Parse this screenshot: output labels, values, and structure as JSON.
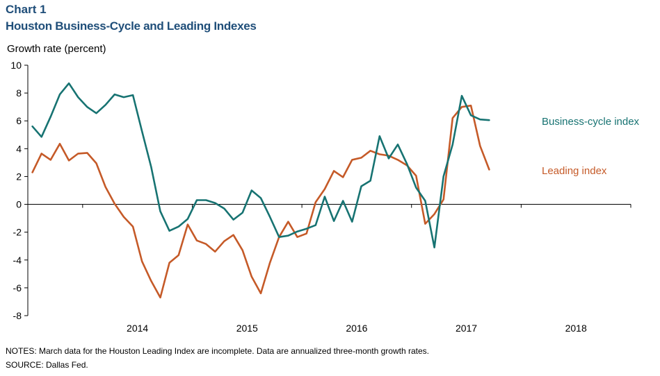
{
  "header": {
    "chart_number": "Chart 1",
    "title": "Houston Business-Cycle and Leading Indexes"
  },
  "footer": {
    "notes": "NOTES: March data for the Houston Leading Index are incomplete. Data are annualized three-month growth rates.",
    "source": "SOURCE: Dallas Fed."
  },
  "colors": {
    "business_cycle": "#177372",
    "leading": "#c55a28"
  },
  "chart_data": {
    "type": "line",
    "title": "Houston Business-Cycle and Leading Indexes",
    "ylabel": "Growth rate (percent)",
    "xlabel": "",
    "ylim": [
      -8,
      10
    ],
    "yticks": [
      -8,
      -6,
      -4,
      -2,
      0,
      2,
      4,
      6,
      8,
      10
    ],
    "xlim": [
      "2013-07",
      "2018-12"
    ],
    "year_labels": [
      "2014",
      "2015",
      "2016",
      "2017",
      "2018"
    ],
    "grid": false,
    "x": [
      "2013-07",
      "2013-08",
      "2013-09",
      "2013-10",
      "2013-11",
      "2013-12",
      "2014-01",
      "2014-02",
      "2014-03",
      "2014-04",
      "2014-05",
      "2014-06",
      "2014-07",
      "2014-08",
      "2014-09",
      "2014-10",
      "2014-11",
      "2014-12",
      "2015-01",
      "2015-02",
      "2015-03",
      "2015-04",
      "2015-05",
      "2015-06",
      "2015-07",
      "2015-08",
      "2015-09",
      "2015-10",
      "2015-11",
      "2015-12",
      "2016-01",
      "2016-02",
      "2016-03",
      "2016-04",
      "2016-05",
      "2016-06",
      "2016-07",
      "2016-08",
      "2016-09",
      "2016-10",
      "2016-11",
      "2016-12",
      "2017-01",
      "2017-02",
      "2017-03",
      "2017-04",
      "2017-05",
      "2017-06",
      "2017-07",
      "2017-08",
      "2017-09",
      "2017-10"
    ],
    "series": [
      {
        "name": "Business-cycle index",
        "values": [
          5.6,
          4.85,
          6.3,
          7.9,
          8.7,
          7.7,
          7.0,
          6.55,
          7.15,
          7.9,
          7.7,
          7.85,
          5.25,
          2.7,
          -0.5,
          -1.9,
          -1.6,
          -1.05,
          0.3,
          0.3,
          0.1,
          -0.3,
          -1.1,
          -0.6,
          1.0,
          0.45,
          -0.9,
          -2.35,
          -2.25,
          -1.95,
          -1.75,
          -1.5,
          0.55,
          -1.2,
          0.25,
          -1.25,
          1.3,
          1.7,
          4.9,
          3.3,
          4.3,
          2.9,
          1.2,
          0.25,
          -3.1,
          2.0,
          4.3,
          7.8,
          6.4,
          6.1,
          6.05,
          null
        ]
      },
      {
        "name": "Leading index",
        "values": [
          2.3,
          3.65,
          3.2,
          4.35,
          3.15,
          3.65,
          3.7,
          2.95,
          1.25,
          0.05,
          -0.9,
          -1.6,
          -4.1,
          -5.5,
          -6.7,
          -4.2,
          -3.65,
          -1.45,
          -2.6,
          -2.85,
          -3.4,
          -2.65,
          -2.2,
          -3.3,
          -5.2,
          -6.4,
          -4.2,
          -2.35,
          -1.25,
          -2.35,
          -2.1,
          0.15,
          1.1,
          2.4,
          1.95,
          3.2,
          3.35,
          3.85,
          3.6,
          3.5,
          3.2,
          2.8,
          2.05,
          -1.4,
          -0.7,
          0.35,
          6.2,
          7.0,
          7.1,
          4.2,
          2.5,
          null
        ]
      }
    ],
    "series_label_text": {
      "business_cycle": "Business-cycle index",
      "leading": "Leading index"
    }
  }
}
